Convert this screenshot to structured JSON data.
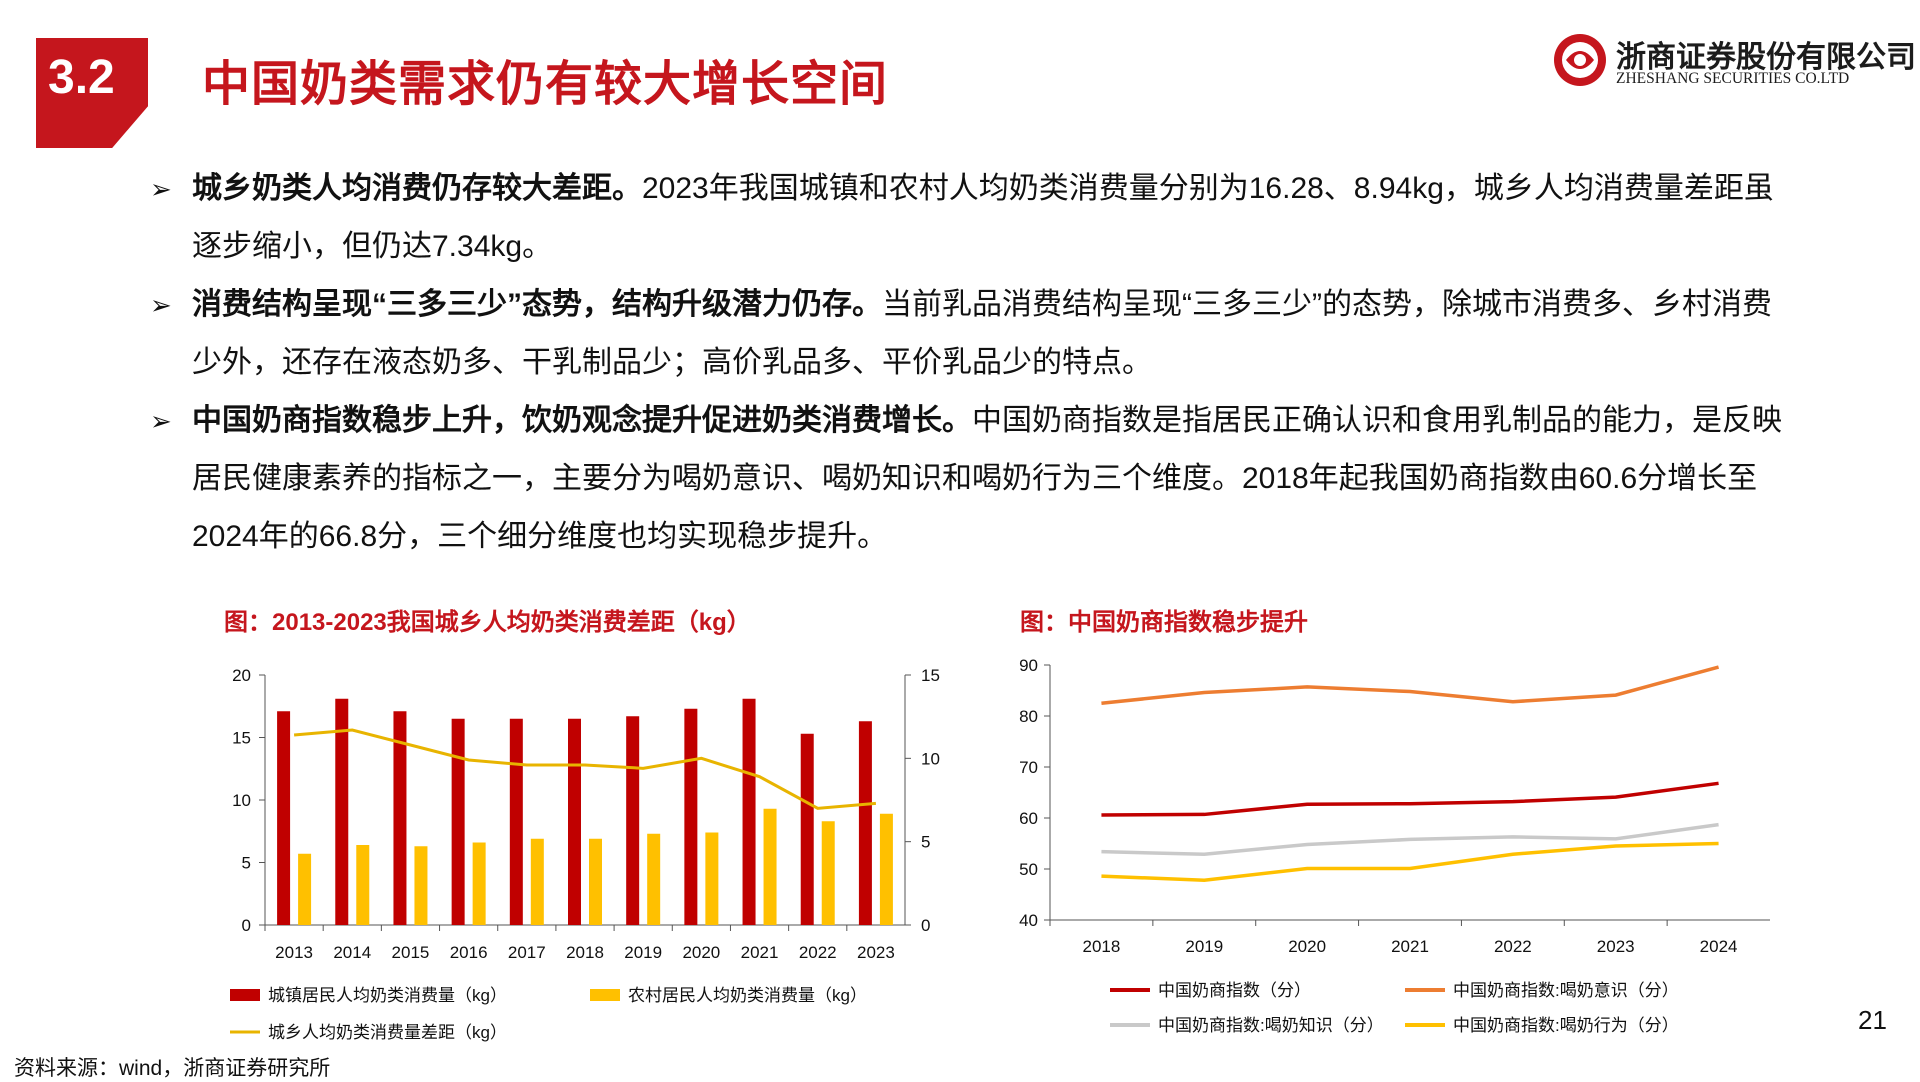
{
  "header": {
    "section_number": "3.2",
    "title": "中国奶类需求仍有较大增长空间",
    "logo_cn": "浙商证券股份有限公司",
    "logo_en": "ZHESHANG SECURITIES CO.LTD"
  },
  "bullets": [
    {
      "bold": "城乡奶类人均消费仍存较大差距。",
      "text": "2023年我国城镇和农村人均奶类消费量分别为16.28、8.94kg，城乡人均消费量差距虽逐步缩小，但仍达7.34kg。"
    },
    {
      "bold": "消费结构呈现“三多三少”态势，结构升级潜力仍存。",
      "text": "当前乳品消费结构呈现“三多三少”的态势，除城市消费多、乡村消费少外，还存在液态奶多、干乳制品少；高价乳品多、平价乳品少的特点。"
    },
    {
      "bold": "中国奶商指数稳步上升，饮奶观念提升促进奶类消费增长。",
      "text": "中国奶商指数是指居民正确认识和食用乳制品的能力，是反映居民健康素养的指标之一，主要分为喝奶意识、喝奶知识和喝奶行为三个维度。2018年起我国奶商指数由60.6分增长至2024年的66.8分，三个细分维度也均实现稳步提升。"
    }
  ],
  "bullet_marker": "➢",
  "chart_data": [
    {
      "type": "bar",
      "title": "图：2013-2023我国城乡人均奶类消费差距（kg）",
      "categories": [
        "2013",
        "2014",
        "2015",
        "2016",
        "2017",
        "2018",
        "2019",
        "2020",
        "2021",
        "2022",
        "2023"
      ],
      "ylim": [
        0,
        20
      ],
      "y_ticks": [
        "0",
        "5",
        "10",
        "15",
        "20"
      ],
      "y2lim": [
        0,
        15
      ],
      "y2_ticks": [
        "0",
        "5",
        "10",
        "15"
      ],
      "series": [
        {
          "name": "城镇居民人均奶类消费量（kg）",
          "kind": "bar",
          "axis": "left",
          "color": "#c00000",
          "values": [
            17.1,
            18.1,
            17.1,
            16.5,
            16.5,
            16.5,
            16.7,
            17.3,
            18.1,
            15.3,
            16.3
          ]
        },
        {
          "name": "农村居民人均奶类消费量（kg）",
          "kind": "bar",
          "axis": "left",
          "color": "#ffc000",
          "values": [
            5.7,
            6.4,
            6.3,
            6.6,
            6.9,
            6.9,
            7.3,
            7.4,
            9.3,
            8.3,
            8.9
          ]
        },
        {
          "name": "城乡人均奶类消费量差距（kg）",
          "kind": "line",
          "axis": "right",
          "color": "#e8b400",
          "values": [
            11.4,
            11.7,
            10.8,
            9.9,
            9.6,
            9.6,
            9.4,
            10.0,
            8.9,
            7.0,
            7.3
          ]
        }
      ],
      "legend_position": "bottom"
    },
    {
      "type": "line",
      "title": "图：中国奶商指数稳步提升",
      "categories": [
        "2018",
        "2019",
        "2020",
        "2021",
        "2022",
        "2023",
        "2024"
      ],
      "ylim": [
        40,
        90
      ],
      "y_ticks": [
        "40",
        "50",
        "60",
        "70",
        "80",
        "90"
      ],
      "series": [
        {
          "name": "中国奶商指数（分）",
          "color": "#c00000",
          "values": [
            60.6,
            60.7,
            62.7,
            62.8,
            63.2,
            64.1,
            66.8
          ]
        },
        {
          "name": "中国奶商指数:喝奶意识（分）",
          "color": "#ed7d31",
          "values": [
            82.5,
            84.6,
            85.7,
            84.8,
            82.8,
            84.1,
            89.6
          ]
        },
        {
          "name": "中国奶商指数:喝奶知识（分）",
          "color": "#c9c9c9",
          "values": [
            53.4,
            52.9,
            54.8,
            55.8,
            56.3,
            55.9,
            58.7
          ]
        },
        {
          "name": "中国奶商指数:喝奶行为（分）",
          "color": "#ffc000",
          "values": [
            48.6,
            47.8,
            50.1,
            50.1,
            52.9,
            54.5,
            55.0
          ]
        }
      ],
      "legend_position": "bottom"
    }
  ],
  "footer": {
    "source": "资料来源：wind，浙商证券研究所",
    "page_number": "21"
  }
}
